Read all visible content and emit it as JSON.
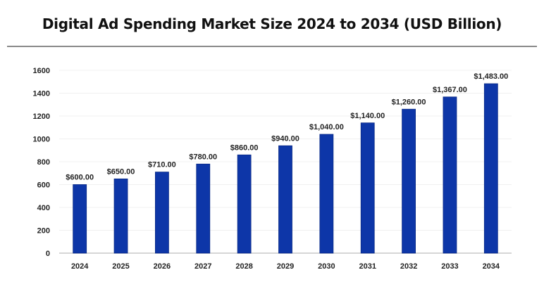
{
  "chart_data": {
    "type": "bar",
    "title": "Digital Ad Spending Market Size 2024 to 2034 (USD Billion)",
    "categories": [
      "2024",
      "2025",
      "2026",
      "2027",
      "2028",
      "2029",
      "2030",
      "2031",
      "2032",
      "2033",
      "2034"
    ],
    "values": [
      600,
      650,
      710,
      780,
      860,
      940,
      1040,
      1140,
      1260,
      1367,
      1483
    ],
    "data_labels": [
      "$600.00",
      "$650.00",
      "$710.00",
      "$780.00",
      "$860.00",
      "$940.00",
      "$1,040.00",
      "$1,140.00",
      "$1,260.00",
      "$1,367.00",
      "$1,483.00"
    ],
    "xlabel": "",
    "ylabel": "",
    "ylim": [
      0,
      1600
    ],
    "yticks": [
      0,
      200,
      400,
      600,
      800,
      1000,
      1200,
      1400,
      1600
    ],
    "grid": true,
    "bar_color": "#0d36a8"
  }
}
